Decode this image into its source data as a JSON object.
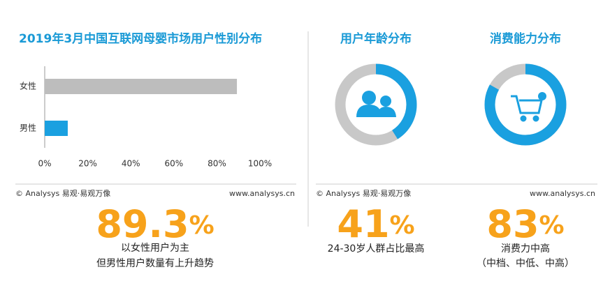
{
  "chart_data": [
    {
      "type": "hbar",
      "title": "2019年3月中国互联网母婴市场用户性别分布",
      "categories": [
        "女性",
        "男性"
      ],
      "values": [
        89.3,
        10.7
      ],
      "value_labels": [
        "89.3%",
        null
      ],
      "colors": [
        "#bdbdbd",
        "#1aa0e0"
      ],
      "xlim": [
        0,
        100
      ],
      "xticks": [
        {
          "value": 0,
          "label": "0%"
        },
        {
          "value": 20,
          "label": "20%"
        },
        {
          "value": 40,
          "label": "40%"
        },
        {
          "value": 60,
          "label": "60%"
        },
        {
          "value": 80,
          "label": "80%"
        },
        {
          "value": 100,
          "label": "100%"
        }
      ],
      "notes": [
        "以女性用户为主",
        "但男性用户数量有上升趋势"
      ]
    },
    {
      "type": "donut",
      "title": "用户年龄分布",
      "values": [
        41
      ],
      "value_labels": [
        "41%"
      ],
      "color": "#1aa0e0",
      "track_color": "#c8c8c8",
      "notes": [
        "24-30岁人群占比最高"
      ]
    },
    {
      "type": "donut",
      "title": "消费能力分布",
      "values": [
        83
      ],
      "value_labels": [
        "83%"
      ],
      "color": "#1aa0e0",
      "track_color": "#c8c8c8",
      "notes": [
        "消费力中高",
        "（中档、中低、中高）"
      ]
    }
  ],
  "footers": [
    {
      "source": "© Analysys 易观·易观万像",
      "url": "www.analysys.cn"
    },
    {
      "source": "© Analysys 易观·易观万像",
      "url": "www.analysys.cn"
    }
  ]
}
